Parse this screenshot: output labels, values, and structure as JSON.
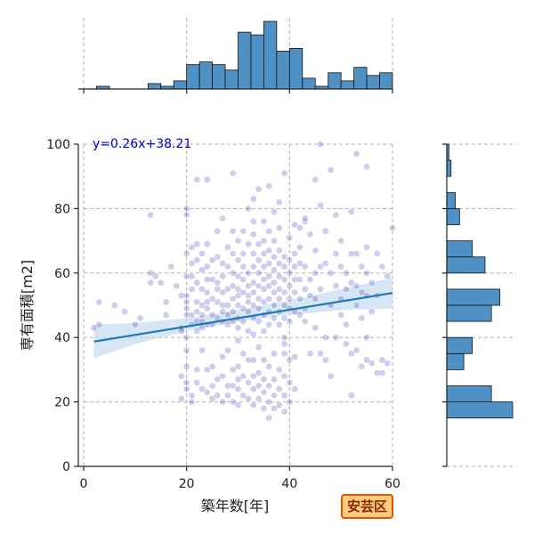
{
  "chart_data": {
    "type": "scatter",
    "xlabel": "築年数[年]",
    "ylabel": "専有面積[m2]",
    "xlim": [
      0,
      60
    ],
    "ylim": [
      0,
      100
    ],
    "xticks": [
      0,
      20,
      40,
      60
    ],
    "yticks": [
      0,
      20,
      40,
      60,
      80,
      100
    ],
    "grid": true,
    "regression": {
      "label": "y=0.26x+38.21",
      "slope": 0.26,
      "intercept": 38.21,
      "x_range": [
        2,
        60
      ],
      "ci_lower": [
        [
          2,
          33.5
        ],
        [
          10,
          38
        ],
        [
          20,
          42
        ],
        [
          30,
          45
        ],
        [
          40,
          47
        ],
        [
          50,
          48.5
        ],
        [
          60,
          49
        ]
      ],
      "ci_upper": [
        [
          2,
          44
        ],
        [
          10,
          44.5
        ],
        [
          20,
          46
        ],
        [
          30,
          48.5
        ],
        [
          40,
          51.5
        ],
        [
          50,
          55
        ],
        [
          60,
          58.5
        ]
      ]
    },
    "points": [
      [
        2,
        43
      ],
      [
        3,
        44
      ],
      [
        3,
        51
      ],
      [
        6,
        50
      ],
      [
        8,
        48
      ],
      [
        10,
        44
      ],
      [
        11,
        46
      ],
      [
        13,
        60
      ],
      [
        13,
        57
      ],
      [
        13,
        78
      ],
      [
        14,
        59
      ],
      [
        15,
        57
      ],
      [
        16,
        51
      ],
      [
        16,
        47
      ],
      [
        17,
        62
      ],
      [
        18,
        56
      ],
      [
        19,
        43
      ],
      [
        19,
        42
      ],
      [
        19,
        21
      ],
      [
        19,
        28
      ],
      [
        19,
        53
      ],
      [
        20,
        80
      ],
      [
        20,
        78
      ],
      [
        20,
        66
      ],
      [
        20,
        59
      ],
      [
        20,
        53
      ],
      [
        20,
        51
      ],
      [
        20,
        49
      ],
      [
        20,
        47
      ],
      [
        20,
        40
      ],
      [
        20,
        36
      ],
      [
        20,
        31
      ],
      [
        20,
        26
      ],
      [
        20,
        24
      ],
      [
        21,
        68
      ],
      [
        21,
        63
      ],
      [
        21,
        59
      ],
      [
        21,
        55
      ],
      [
        21,
        47
      ],
      [
        21,
        44
      ],
      [
        21,
        20
      ],
      [
        21,
        22
      ],
      [
        22,
        89
      ],
      [
        22,
        69
      ],
      [
        22,
        64
      ],
      [
        22,
        57
      ],
      [
        22,
        51
      ],
      [
        22,
        48
      ],
      [
        22,
        45
      ],
      [
        22,
        42
      ],
      [
        22,
        30
      ],
      [
        22,
        26
      ],
      [
        23,
        66
      ],
      [
        23,
        61
      ],
      [
        23,
        55
      ],
      [
        23,
        50
      ],
      [
        23,
        47
      ],
      [
        23,
        45
      ],
      [
        23,
        43
      ],
      [
        23,
        36
      ],
      [
        23,
        24
      ],
      [
        24,
        89
      ],
      [
        24,
        69
      ],
      [
        24,
        62
      ],
      [
        24,
        58
      ],
      [
        24,
        54
      ],
      [
        24,
        51
      ],
      [
        24,
        49
      ],
      [
        24,
        44
      ],
      [
        24,
        30
      ],
      [
        24,
        23
      ],
      [
        25,
        64
      ],
      [
        25,
        58
      ],
      [
        25,
        52
      ],
      [
        25,
        47
      ],
      [
        25,
        44
      ],
      [
        25,
        31
      ],
      [
        25,
        25
      ],
      [
        25,
        21
      ],
      [
        26,
        73
      ],
      [
        26,
        65
      ],
      [
        26,
        57
      ],
      [
        26,
        55
      ],
      [
        26,
        51
      ],
      [
        26,
        46
      ],
      [
        26,
        27
      ],
      [
        26,
        22
      ],
      [
        27,
        77
      ],
      [
        27,
        63
      ],
      [
        27,
        59
      ],
      [
        27,
        54
      ],
      [
        27,
        50
      ],
      [
        27,
        48
      ],
      [
        27,
        45
      ],
      [
        27,
        34
      ],
      [
        27,
        28
      ],
      [
        27,
        20
      ],
      [
        28,
        68
      ],
      [
        28,
        62
      ],
      [
        28,
        55
      ],
      [
        28,
        50
      ],
      [
        28,
        47
      ],
      [
        28,
        44
      ],
      [
        28,
        36
      ],
      [
        28,
        25
      ],
      [
        28,
        22
      ],
      [
        29,
        91
      ],
      [
        29,
        73
      ],
      [
        29,
        66
      ],
      [
        29,
        60
      ],
      [
        29,
        56
      ],
      [
        29,
        52
      ],
      [
        29,
        48
      ],
      [
        29,
        45
      ],
      [
        29,
        30
      ],
      [
        29,
        25
      ],
      [
        29,
        20
      ],
      [
        30,
        70
      ],
      [
        30,
        64
      ],
      [
        30,
        59
      ],
      [
        30,
        55
      ],
      [
        30,
        53
      ],
      [
        30,
        50
      ],
      [
        30,
        46
      ],
      [
        30,
        43
      ],
      [
        30,
        39
      ],
      [
        30,
        31
      ],
      [
        30,
        27
      ],
      [
        30,
        24
      ],
      [
        30,
        19
      ],
      [
        31,
        73
      ],
      [
        31,
        66
      ],
      [
        31,
        62
      ],
      [
        31,
        58
      ],
      [
        31,
        54
      ],
      [
        31,
        49
      ],
      [
        31,
        45
      ],
      [
        31,
        35
      ],
      [
        31,
        28
      ],
      [
        31,
        22
      ],
      [
        32,
        80
      ],
      [
        32,
        69
      ],
      [
        32,
        60
      ],
      [
        32,
        56
      ],
      [
        32,
        53
      ],
      [
        32,
        51
      ],
      [
        32,
        48
      ],
      [
        32,
        42
      ],
      [
        32,
        33
      ],
      [
        32,
        26
      ],
      [
        32,
        21
      ],
      [
        33,
        83
      ],
      [
        33,
        76
      ],
      [
        33,
        72
      ],
      [
        33,
        66
      ],
      [
        33,
        62
      ],
      [
        33,
        57
      ],
      [
        33,
        54
      ],
      [
        33,
        50
      ],
      [
        33,
        46
      ],
      [
        33,
        41
      ],
      [
        33,
        33
      ],
      [
        33,
        28
      ],
      [
        33,
        24
      ],
      [
        33,
        19
      ],
      [
        34,
        86
      ],
      [
        34,
        69
      ],
      [
        34,
        64
      ],
      [
        34,
        60
      ],
      [
        34,
        56
      ],
      [
        34,
        52
      ],
      [
        34,
        49
      ],
      [
        34,
        45
      ],
      [
        34,
        37
      ],
      [
        34,
        29
      ],
      [
        34,
        25
      ],
      [
        34,
        21
      ],
      [
        35,
        76
      ],
      [
        35,
        70
      ],
      [
        35,
        66
      ],
      [
        35,
        62
      ],
      [
        35,
        58
      ],
      [
        35,
        55
      ],
      [
        35,
        51
      ],
      [
        35,
        47
      ],
      [
        35,
        42
      ],
      [
        35,
        33
      ],
      [
        35,
        27
      ],
      [
        35,
        23
      ],
      [
        35,
        18
      ],
      [
        36,
        87
      ],
      [
        36,
        73
      ],
      [
        36,
        67
      ],
      [
        36,
        63
      ],
      [
        36,
        59
      ],
      [
        36,
        56
      ],
      [
        36,
        52
      ],
      [
        36,
        48
      ],
      [
        36,
        44
      ],
      [
        36,
        31
      ],
      [
        36,
        25
      ],
      [
        36,
        20
      ],
      [
        36,
        15
      ],
      [
        37,
        79
      ],
      [
        37,
        70
      ],
      [
        37,
        65
      ],
      [
        37,
        61
      ],
      [
        37,
        57
      ],
      [
        37,
        54
      ],
      [
        37,
        50
      ],
      [
        37,
        46
      ],
      [
        37,
        35
      ],
      [
        37,
        27
      ],
      [
        37,
        22
      ],
      [
        37,
        18
      ],
      [
        38,
        82
      ],
      [
        38,
        74
      ],
      [
        38,
        67
      ],
      [
        38,
        63
      ],
      [
        38,
        59
      ],
      [
        38,
        55
      ],
      [
        38,
        52
      ],
      [
        38,
        48
      ],
      [
        38,
        44
      ],
      [
        38,
        30
      ],
      [
        38,
        24
      ],
      [
        38,
        19
      ],
      [
        39,
        91
      ],
      [
        39,
        65
      ],
      [
        39,
        62
      ],
      [
        39,
        58
      ],
      [
        39,
        54
      ],
      [
        39,
        50
      ],
      [
        39,
        46
      ],
      [
        39,
        40
      ],
      [
        39,
        38
      ],
      [
        39,
        35
      ],
      [
        39,
        28
      ],
      [
        39,
        22
      ],
      [
        39,
        17
      ],
      [
        40,
        71
      ],
      [
        40,
        64
      ],
      [
        40,
        60
      ],
      [
        40,
        56
      ],
      [
        40,
        52
      ],
      [
        40,
        49
      ],
      [
        40,
        45
      ],
      [
        40,
        33
      ],
      [
        40,
        26
      ],
      [
        40,
        20
      ],
      [
        41,
        75
      ],
      [
        41,
        66
      ],
      [
        41,
        62
      ],
      [
        41,
        58
      ],
      [
        41,
        54
      ],
      [
        41,
        48
      ],
      [
        41,
        34
      ],
      [
        41,
        24
      ],
      [
        42,
        74
      ],
      [
        42,
        68
      ],
      [
        42,
        63
      ],
      [
        42,
        58
      ],
      [
        42,
        52
      ],
      [
        42,
        47
      ],
      [
        43,
        76
      ],
      [
        43,
        77
      ],
      [
        43,
        62
      ],
      [
        43,
        55
      ],
      [
        43,
        49
      ],
      [
        43,
        45
      ],
      [
        44,
        72
      ],
      [
        44,
        58
      ],
      [
        44,
        53
      ],
      [
        44,
        35
      ],
      [
        45,
        89
      ],
      [
        45,
        67
      ],
      [
        45,
        60
      ],
      [
        45,
        52
      ],
      [
        45,
        43
      ],
      [
        46,
        100
      ],
      [
        46,
        81
      ],
      [
        46,
        62
      ],
      [
        46,
        55
      ],
      [
        46,
        35
      ],
      [
        47,
        73
      ],
      [
        47,
        63
      ],
      [
        47,
        40
      ],
      [
        47,
        33
      ],
      [
        48,
        92
      ],
      [
        48,
        60
      ],
      [
        48,
        50
      ],
      [
        48,
        28
      ],
      [
        49,
        78
      ],
      [
        49,
        66
      ],
      [
        49,
        56
      ],
      [
        49,
        40
      ],
      [
        50,
        70
      ],
      [
        50,
        62
      ],
      [
        50,
        52
      ],
      [
        50,
        47
      ],
      [
        51,
        60
      ],
      [
        51,
        55
      ],
      [
        51,
        44
      ],
      [
        51,
        38
      ],
      [
        52,
        79
      ],
      [
        52,
        66
      ],
      [
        52,
        57
      ],
      [
        52,
        35
      ],
      [
        52,
        22
      ],
      [
        53,
        97
      ],
      [
        53,
        66
      ],
      [
        53,
        56
      ],
      [
        53,
        50
      ],
      [
        53,
        36
      ],
      [
        54,
        62
      ],
      [
        54,
        54
      ],
      [
        54,
        46
      ],
      [
        54,
        31
      ],
      [
        55,
        93
      ],
      [
        55,
        68
      ],
      [
        55,
        60
      ],
      [
        55,
        53
      ],
      [
        55,
        40
      ],
      [
        55,
        33
      ],
      [
        56,
        57
      ],
      [
        56,
        48
      ],
      [
        56,
        32
      ],
      [
        57,
        66
      ],
      [
        57,
        53
      ],
      [
        57,
        29
      ],
      [
        58,
        62
      ],
      [
        58,
        33
      ],
      [
        58,
        29
      ],
      [
        59,
        59
      ],
      [
        59,
        32
      ],
      [
        60,
        74
      ]
    ],
    "hist_x": {
      "bin_edges": [
        0,
        2.5,
        5,
        7.5,
        10,
        12.5,
        15,
        17.5,
        20,
        22.5,
        25,
        27.5,
        30,
        32.5,
        35,
        37.5,
        40,
        42.5,
        45,
        47.5,
        50,
        52.5,
        55,
        57.5,
        60
      ],
      "counts": [
        0,
        1,
        0,
        0,
        0,
        2,
        1,
        3,
        9,
        10,
        9,
        7,
        21,
        20,
        25,
        14,
        15,
        4,
        1,
        6,
        3,
        8,
        5,
        6
      ]
    },
    "hist_y": {
      "bin_edges": [
        15,
        20,
        25,
        30,
        35,
        40,
        45,
        50,
        55,
        60,
        65,
        70,
        75,
        80,
        85,
        90,
        95,
        100
      ],
      "counts": [
        31,
        21,
        0,
        8,
        12,
        0,
        21,
        25,
        0,
        18,
        12,
        0,
        6,
        4,
        0,
        2,
        1
      ]
    },
    "marker_color": "#2222aa",
    "line_color": "#1f77b4",
    "ci_color": "#c6dbef",
    "hist_color": "#4f91c4"
  },
  "district_label": "安芸区"
}
